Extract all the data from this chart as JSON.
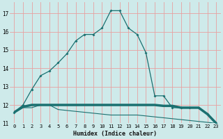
{
  "xlabel": "Humidex (Indice chaleur)",
  "xlim": [
    -0.5,
    23.5
  ],
  "ylim": [
    11.0,
    17.6
  ],
  "yticks": [
    11,
    12,
    13,
    14,
    15,
    16,
    17
  ],
  "xticks": [
    0,
    1,
    2,
    3,
    4,
    5,
    6,
    7,
    8,
    9,
    10,
    11,
    12,
    13,
    14,
    15,
    16,
    17,
    18,
    19,
    20,
    21,
    22,
    23
  ],
  "background_color": "#ceeaea",
  "grid_color": "#e8a0a0",
  "line_color": "#1a7070",
  "series1_x": [
    0,
    1,
    2,
    3,
    4,
    5,
    6,
    7,
    8,
    9,
    10,
    11,
    12,
    13,
    14,
    15,
    16,
    17,
    18,
    19,
    20,
    21,
    22,
    23
  ],
  "series1_y": [
    11.6,
    12.0,
    12.85,
    13.6,
    13.85,
    14.3,
    14.8,
    15.5,
    15.85,
    15.85,
    16.2,
    17.15,
    17.15,
    16.2,
    15.85,
    14.85,
    12.5,
    12.5,
    11.85,
    11.85,
    11.85,
    11.85,
    11.5,
    11.0
  ],
  "series2_x": [
    0,
    1,
    2,
    3,
    4,
    5,
    6,
    7,
    8,
    9,
    10,
    11,
    12,
    13,
    14,
    15,
    16,
    17,
    18,
    19,
    20,
    21,
    22,
    23
  ],
  "series2_y": [
    11.6,
    11.85,
    11.85,
    12.0,
    12.0,
    11.75,
    11.7,
    11.65,
    11.6,
    11.55,
    11.5,
    11.45,
    11.45,
    11.45,
    11.45,
    11.4,
    11.35,
    11.3,
    11.25,
    11.2,
    11.15,
    11.1,
    11.05,
    11.0
  ],
  "series3_x": [
    0,
    1,
    2,
    3,
    4,
    5,
    6,
    7,
    8,
    9,
    10,
    11,
    12,
    13,
    14,
    15,
    16,
    17,
    18,
    19,
    20,
    21,
    22,
    23
  ],
  "series3_y": [
    11.6,
    11.9,
    12.0,
    12.0,
    12.0,
    12.0,
    12.0,
    12.0,
    12.0,
    12.0,
    12.0,
    12.0,
    12.0,
    12.0,
    12.0,
    12.0,
    12.0,
    11.95,
    11.95,
    11.85,
    11.85,
    11.85,
    11.5,
    11.0
  ]
}
